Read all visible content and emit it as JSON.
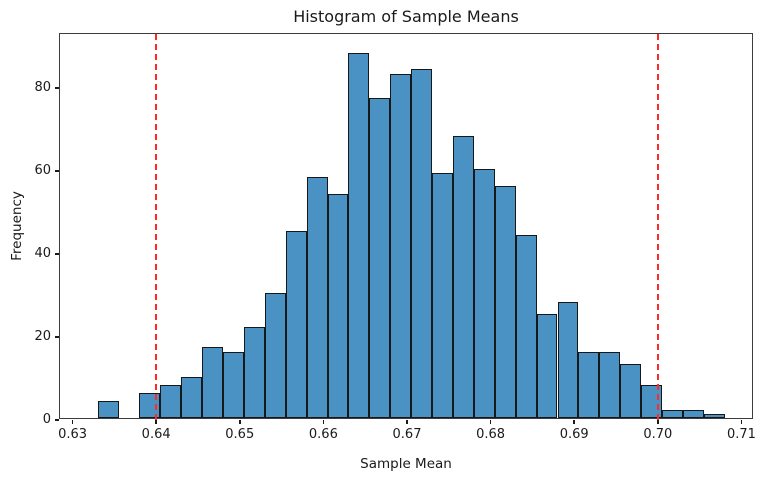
{
  "chart_data": {
    "type": "bar",
    "subtype": "histogram",
    "title": "Histogram of Sample Means",
    "xlabel": "Sample Mean",
    "ylabel": "Frequency",
    "bin_edges": [
      0.633,
      0.6355,
      0.638,
      0.6405,
      0.643,
      0.6455,
      0.648,
      0.6505,
      0.653,
      0.6555,
      0.658,
      0.6605,
      0.663,
      0.6655,
      0.668,
      0.6705,
      0.673,
      0.6755,
      0.678,
      0.6805,
      0.683,
      0.6855,
      0.688,
      0.6905,
      0.693,
      0.6955,
      0.698,
      0.7005,
      0.703,
      0.7055,
      0.708
    ],
    "counts": [
      4,
      0,
      6,
      8,
      10,
      17,
      16,
      22,
      30,
      45,
      58,
      54,
      88,
      77,
      83,
      84,
      59,
      68,
      60,
      56,
      44,
      25,
      28,
      16,
      16,
      13,
      8,
      2,
      2,
      1
    ],
    "xlim": [
      0.6285,
      0.7115
    ],
    "ylim": [
      0,
      93
    ],
    "xticks": {
      "values": [
        0.63,
        0.64,
        0.65,
        0.66,
        0.67,
        0.68,
        0.69,
        0.7,
        0.71
      ],
      "labels": [
        "0.63",
        "0.64",
        "0.65",
        "0.66",
        "0.67",
        "0.68",
        "0.69",
        "0.70",
        "0.71"
      ]
    },
    "yticks": {
      "values": [
        0,
        20,
        40,
        60,
        80
      ],
      "labels": [
        "0",
        "20",
        "40",
        "60",
        "80"
      ]
    },
    "vlines": [
      {
        "x": 0.64,
        "style": "dashed",
        "color": "#ff2a2a"
      },
      {
        "x": 0.7,
        "style": "dashed",
        "color": "#ff2a2a"
      }
    ],
    "legend": null,
    "grid": false,
    "colors": {
      "bar_fill": "#4a92c4",
      "bar_edge": "#16181a",
      "vline": "#ff2a2a",
      "spine": "#3c3c3c",
      "text": "#1a1a1a",
      "background": "#ffffff"
    }
  }
}
